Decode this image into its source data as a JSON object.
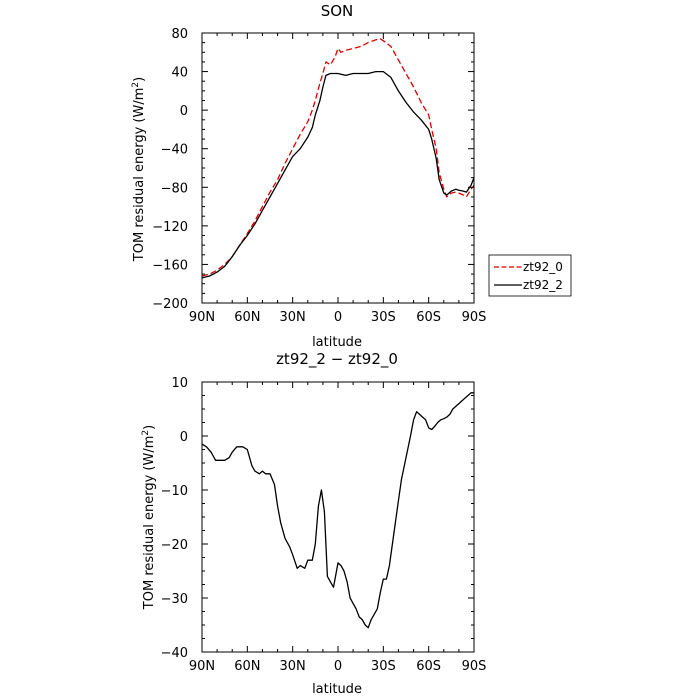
{
  "chart_data": [
    {
      "type": "line",
      "title": "SON",
      "xlabel": "latitude",
      "ylabel": "TOM residual energy (W/m²)",
      "xlim": [
        90,
        -90
      ],
      "ylim": [
        -200,
        80
      ],
      "xticks": [
        90,
        60,
        30,
        0,
        -30,
        -60,
        -90
      ],
      "xtick_labels": [
        "90N",
        "60N",
        "30N",
        "0",
        "30S",
        "60S",
        "90S"
      ],
      "yticks": [
        80,
        40,
        0,
        -40,
        -80,
        -120,
        -160,
        -200
      ],
      "ytick_labels": [
        "80",
        "40",
        "0",
        "−40",
        "−80",
        "−120",
        "−160",
        "−200"
      ],
      "legend": "right-outside",
      "series": [
        {
          "name": "zt92_0",
          "color": "#e00000",
          "dash": "dashed",
          "x": [
            90,
            85,
            80,
            75,
            70,
            65,
            60,
            55,
            50,
            45,
            40,
            35,
            30,
            25,
            20,
            17,
            15,
            12,
            10,
            8,
            5,
            2,
            0,
            -2,
            -5,
            -10,
            -15,
            -20,
            -25,
            -28,
            -30,
            -35,
            -40,
            -45,
            -50,
            -55,
            -60,
            -62,
            -65,
            -67,
            -70,
            -72,
            -75,
            -78,
            -80,
            -83,
            -85,
            -88,
            -90
          ],
          "y": [
            -172,
            -170,
            -166,
            -160,
            -152,
            -140,
            -128,
            -115,
            -100,
            -85,
            -72,
            -55,
            -40,
            -25,
            -12,
            0,
            10,
            28,
            38,
            50,
            47,
            55,
            64,
            60,
            62,
            64,
            66,
            70,
            73,
            74,
            72,
            66,
            52,
            38,
            24,
            8,
            -5,
            -20,
            -40,
            -65,
            -82,
            -90,
            -86,
            -85,
            -86,
            -88,
            -90,
            -82,
            -78
          ]
        },
        {
          "name": "zt92_2",
          "color": "#000000",
          "dash": "solid",
          "x": [
            90,
            85,
            80,
            75,
            70,
            65,
            60,
            55,
            50,
            45,
            40,
            35,
            30,
            25,
            20,
            17,
            15,
            12,
            10,
            8,
            5,
            0,
            -5,
            -10,
            -15,
            -20,
            -25,
            -30,
            -35,
            -40,
            -45,
            -50,
            -55,
            -60,
            -62,
            -65,
            -67,
            -70,
            -72,
            -75,
            -78,
            -80,
            -83,
            -85,
            -88,
            -90
          ],
          "y": [
            -174,
            -172,
            -168,
            -162,
            -152,
            -140,
            -130,
            -118,
            -104,
            -90,
            -76,
            -62,
            -48,
            -40,
            -28,
            -18,
            -5,
            10,
            24,
            36,
            38,
            38,
            36,
            38,
            38,
            38,
            40,
            40,
            34,
            20,
            8,
            -2,
            -10,
            -20,
            -30,
            -50,
            -72,
            -86,
            -88,
            -84,
            -82,
            -83,
            -84,
            -85,
            -78,
            -70
          ]
        }
      ]
    },
    {
      "type": "line",
      "title": "zt92_2 − zt92_0",
      "xlabel": "latitude",
      "ylabel": "TOM residual energy (W/m²)",
      "xlim": [
        90,
        -90
      ],
      "ylim": [
        -40,
        10
      ],
      "xticks": [
        90,
        60,
        30,
        0,
        -30,
        -60,
        -90
      ],
      "xtick_labels": [
        "90N",
        "60N",
        "30N",
        "0",
        "30S",
        "60S",
        "90S"
      ],
      "yticks": [
        10,
        0,
        -10,
        -20,
        -30,
        -40
      ],
      "ytick_labels": [
        "10",
        "0",
        "−10",
        "−20",
        "−30",
        "−40"
      ],
      "series": [
        {
          "color": "#000000",
          "dash": "solid",
          "x": [
            90,
            87,
            84,
            81,
            78,
            75,
            72,
            70,
            67,
            65,
            63,
            60,
            57,
            55,
            52,
            50,
            48,
            45,
            42,
            40,
            38,
            35,
            32,
            30,
            27,
            25,
            22,
            20,
            17,
            15,
            13,
            11,
            9,
            7,
            5,
            3,
            1,
            0,
            -2,
            -4,
            -6,
            -8,
            -10,
            -12,
            -14,
            -16,
            -18,
            -20,
            -22,
            -24,
            -26,
            -28,
            -30,
            -32,
            -34,
            -36,
            -38,
            -40,
            -42,
            -45,
            -48,
            -50,
            -52,
            -54,
            -56,
            -58,
            -60,
            -62,
            -64,
            -66,
            -68,
            -70,
            -72,
            -74,
            -76,
            -78,
            -80,
            -82,
            -84,
            -86,
            -88,
            -90
          ],
          "y": [
            -1.5,
            -2,
            -3,
            -4.5,
            -4.5,
            -4.5,
            -4,
            -3,
            -2,
            -2,
            -2,
            -2.5,
            -5.5,
            -6.5,
            -7,
            -6.5,
            -7,
            -7,
            -9,
            -13,
            -16,
            -19,
            -20.5,
            -22,
            -24.5,
            -24,
            -24.5,
            -23,
            -23,
            -20,
            -13,
            -10,
            -14,
            -26,
            -27,
            -28,
            -25,
            -23.5,
            -24,
            -25,
            -27,
            -30,
            -31,
            -32,
            -33.5,
            -34,
            -35,
            -35.5,
            -34,
            -33,
            -32,
            -29,
            -26.5,
            -26.5,
            -24,
            -20,
            -16,
            -12,
            -8,
            -4,
            0,
            3,
            4.5,
            4,
            3.5,
            3,
            1.5,
            1.2,
            1.8,
            2.5,
            3,
            3.2,
            3.5,
            4,
            5,
            5.5,
            6,
            6.5,
            7,
            7.5,
            8,
            8
          ]
        }
      ]
    }
  ]
}
